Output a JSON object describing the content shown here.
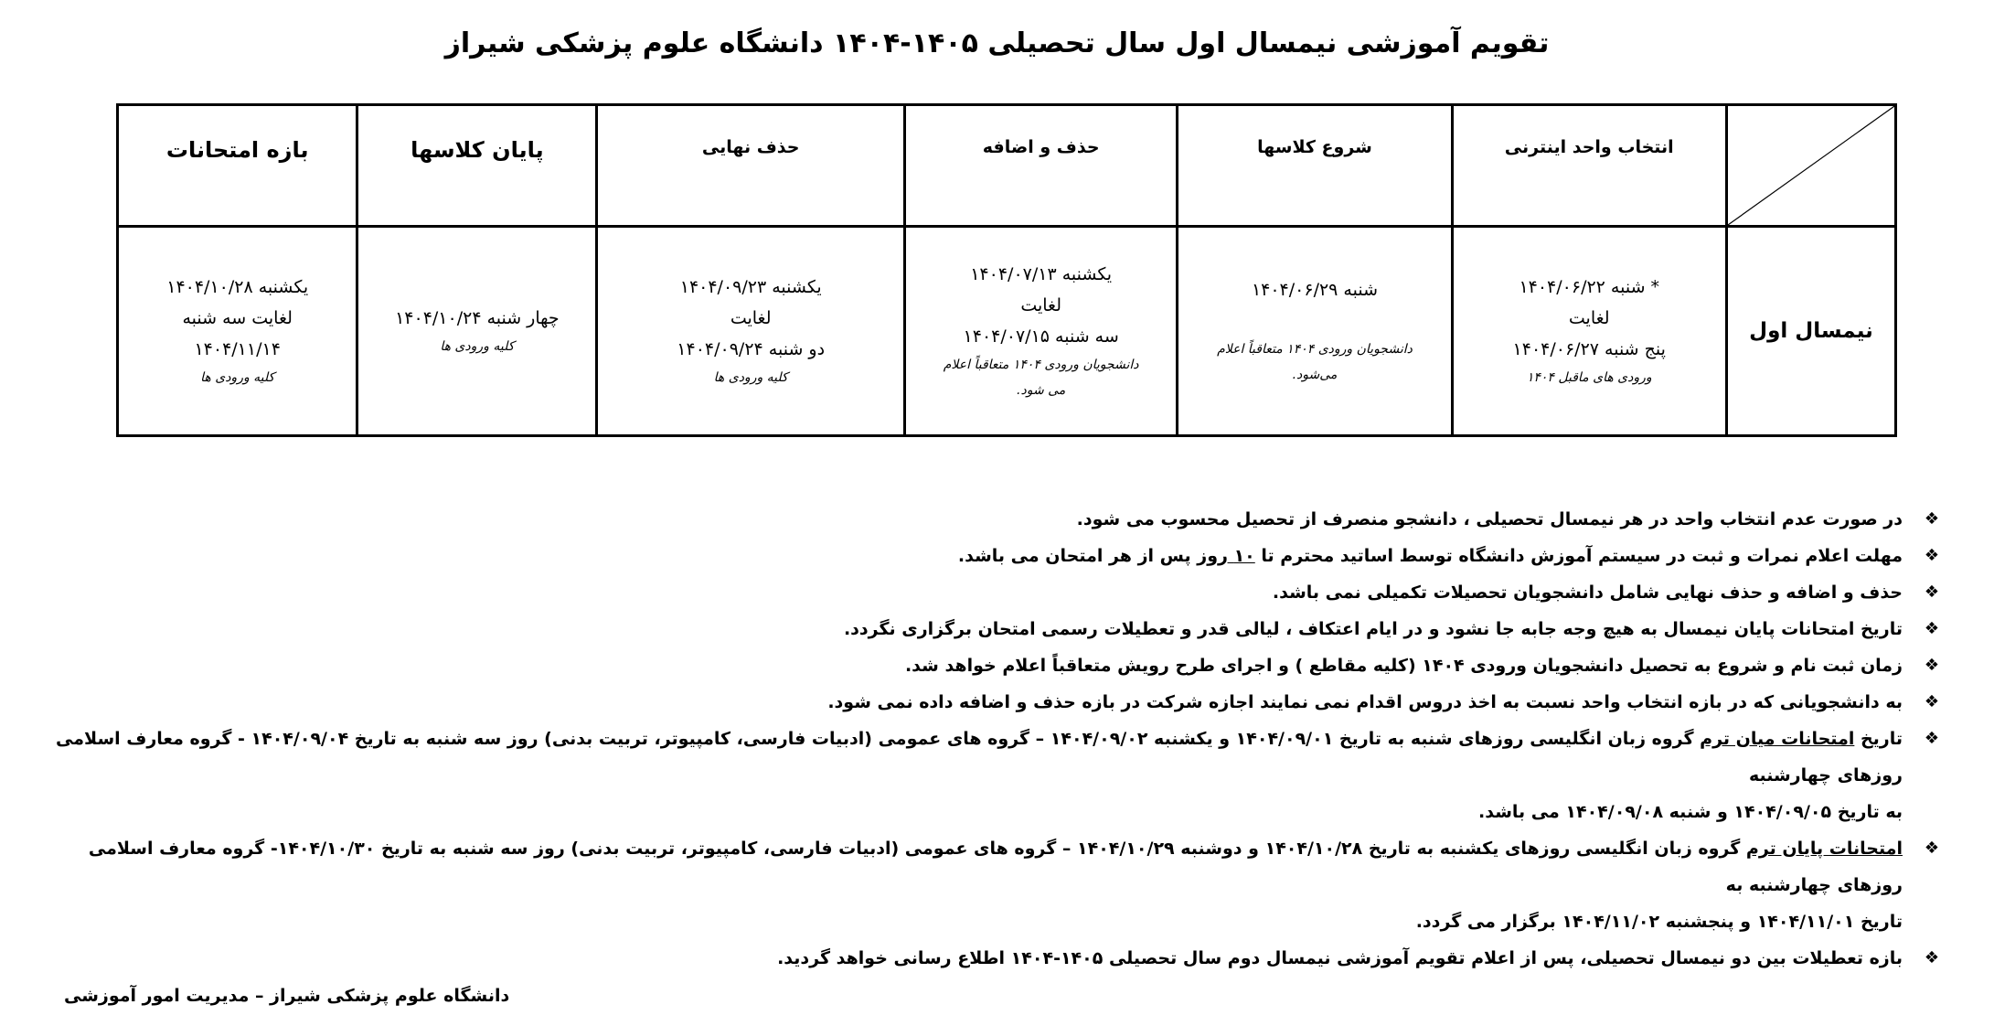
{
  "title": "تقویم آموزشی نیمسال اول سال تحصیلی ۱۴۰۵-۱۴۰۴ دانشگاه علوم پزشکی شیراز",
  "table": {
    "headers": [
      "انتخاب واحد اینترنی",
      "شروع کلاسها",
      "حذف و اضافه",
      "حذف نهایی",
      "پایان کلاسها",
      "بازه امتحانات"
    ],
    "row_label": "نیمسال اول",
    "cells": [
      {
        "lines": [
          "* شنبه ۱۴۰۴/۰۶/۲۲",
          "لغایت",
          "پنج شنبه ۱۴۰۴/۰۶/۲۷"
        ],
        "notes": [
          "ورودی های ماقبل ۱۴۰۴"
        ]
      },
      {
        "lines": [
          "شنبه ۱۴۰۴/۰۶/۲۹"
        ],
        "notes": [
          "دانشجویان ورودی ۱۴۰۴ متعاقباً اعلام",
          "می‌شود."
        ]
      },
      {
        "lines": [
          "یکشنبه ۱۴۰۴/۰۷/۱۳",
          "لغایت",
          "سه شنبه ۱۴۰۴/۰۷/۱۵"
        ],
        "notes": [
          "دانشجویان ورودی ۱۴۰۴ متعاقباً اعلام",
          "می شود."
        ]
      },
      {
        "lines": [
          "یکشنبه ۱۴۰۴/۰۹/۲۳",
          "لغایت",
          "دو شنبه ۱۴۰۴/۰۹/۲۴"
        ],
        "notes": [
          "کلیه ورودی ها"
        ]
      },
      {
        "lines": [
          "چهار شنبه ۱۴۰۴/۱۰/۲۴"
        ],
        "notes": [
          "کلیه ورودی ها"
        ]
      },
      {
        "lines": [
          "یکشنبه ۱۴۰۴/۱۰/۲۸",
          "لغایت سه شنبه",
          "۱۴۰۴/۱۱/۱۴"
        ],
        "notes": [
          "کلیه ورودی ها"
        ]
      }
    ]
  },
  "notes": [
    {
      "parts": [
        "در صورت عدم انتخاب واحد در هر نیمسال تحصیلی ، دانشجو منصرف از تحصیل محسوب می شود."
      ]
    },
    {
      "parts": [
        "مهلت اعلام نمرات و ثبت در سیستم آموزش دانشگاه توسط اساتید محترم تا ",
        "۱۰ روز",
        " پس از هر امتحان می باشد."
      ]
    },
    {
      "parts": [
        "حذف و اضافه و حذف نهایی شامل دانشجویان تحصیلات تکمیلی نمی باشد."
      ]
    },
    {
      "parts": [
        "تاریخ امتحانات پایان نیمسال به هیچ وجه جابه جا نشود و در ایام اعتکاف ، لیالی قدر و تعطیلات رسمی امتحان برگزاری نگردد."
      ]
    },
    {
      "parts": [
        "زمان ثبت نام و شروع به تحصیل دانشجویان ورودی ۱۴۰۴ (کلیه مقاطع ) و اجرای طرح رویش متعاقباً اعلام خواهد شد."
      ]
    },
    {
      "parts": [
        "به دانشجویانی که در بازه انتخاب واحد نسبت به اخذ دروس اقدام نمی نمایند اجازه شرکت در بازه حذف و اضافه داده نمی شود."
      ]
    },
    {
      "parts": [
        "تاریخ ",
        "امتحانات میان ترم",
        " گروه زبان انگلیسی روزهای شنبه به تاریخ ۱۴۰۴/۰۹/۰۱ و یکشنبه ۱۴۰۴/۰۹/۰۲ – گروه های عمومی (ادبیات فارسی، کامپیوتر، تربیت بدنی) روز سه شنبه به تاریخ ۱۴۰۴/۰۹/۰۴ - گروه معارف اسلامی روزهای چهارشنبه",
        "به تاریخ ۱۴۰۴/۰۹/۰۵ و شنبه ۱۴۰۴/۰۹/۰۸ می باشد."
      ]
    },
    {
      "parts": [
        "",
        "امتحانات پایان ترم",
        " گروه زبان انگلیسی روزهای یکشنبه به تاریخ ۱۴۰۴/۱۰/۲۸ و دوشنبه ۱۴۰۴/۱۰/۲۹ – گروه های عمومی (ادبیات فارسی، کامپیوتر، تربیت بدنی) روز سه شنبه به تاریخ ۱۴۰۴/۱۰/۳۰- گروه معارف اسلامی روزهای چهارشنبه به",
        "تاریخ ۱۴۰۴/۱۱/۰۱ و پنجشنبه ۱۴۰۴/۱۱/۰۲ برگزار می گردد."
      ]
    },
    {
      "parts": [
        "بازه تعطیلات بین دو نیمسال تحصیلی، پس از اعلام تقویم آموزشی نیمسال دوم سال تحصیلی ۱۴۰۵-۱۴۰۴ اطلاع رسانی خواهد گردید."
      ]
    }
  ],
  "bullet_icon": "diamond-dots-bullet",
  "footer": "دانشگاه علوم پزشکی شیراز – مدیریت امور آموزشی"
}
